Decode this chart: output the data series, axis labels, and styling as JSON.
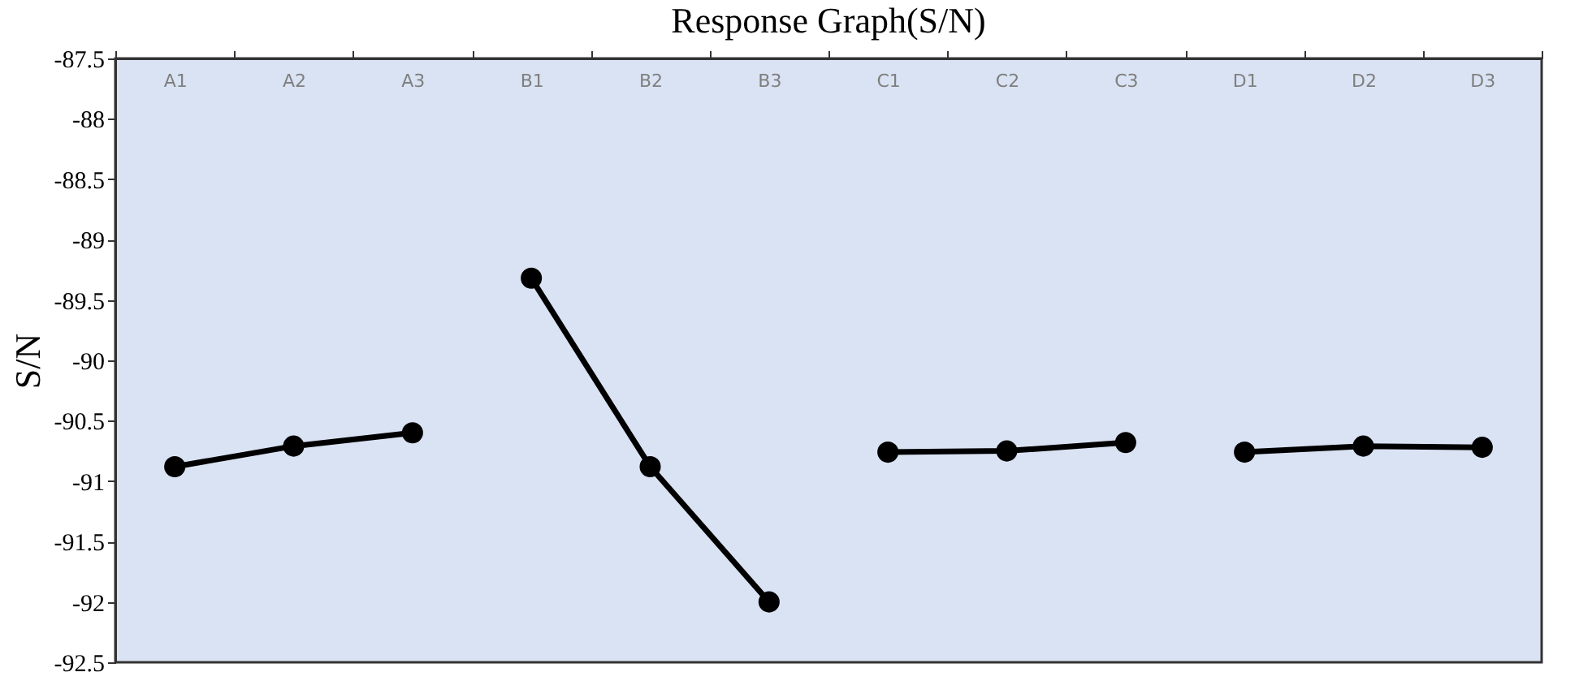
{
  "chart_data": {
    "type": "line",
    "title": "Response Graph(S/N)",
    "ylabel": "S/N",
    "categories": [
      "A1",
      "A2",
      "A3",
      "B1",
      "B2",
      "B3",
      "C1",
      "C2",
      "C3",
      "D1",
      "D2",
      "D3"
    ],
    "series": [
      {
        "color": "#000000",
        "values": [
          -90.88,
          -90.71,
          -90.6,
          null,
          null,
          null,
          null,
          null,
          null,
          null,
          null,
          null
        ]
      },
      {
        "color": "#000000",
        "values": [
          null,
          null,
          null,
          -89.32,
          -90.88,
          -92.0,
          null,
          null,
          null,
          null,
          null,
          null
        ]
      },
      {
        "color": "#000000",
        "values": [
          null,
          null,
          null,
          null,
          null,
          null,
          -90.76,
          -90.75,
          -90.68,
          null,
          null,
          null
        ]
      },
      {
        "color": "#000000",
        "values": [
          null,
          null,
          null,
          null,
          null,
          null,
          null,
          null,
          null,
          -90.76,
          -90.71,
          -90.72
        ]
      }
    ],
    "ylim": [
      -92.5,
      -87.5
    ],
    "yticks": [
      -92.5,
      -92,
      -91.5,
      -91,
      -90.5,
      -90,
      -89.5,
      -89,
      -88.5,
      -88,
      -87.5
    ],
    "marker": "circle",
    "line_style": "solid",
    "grid": false
  }
}
